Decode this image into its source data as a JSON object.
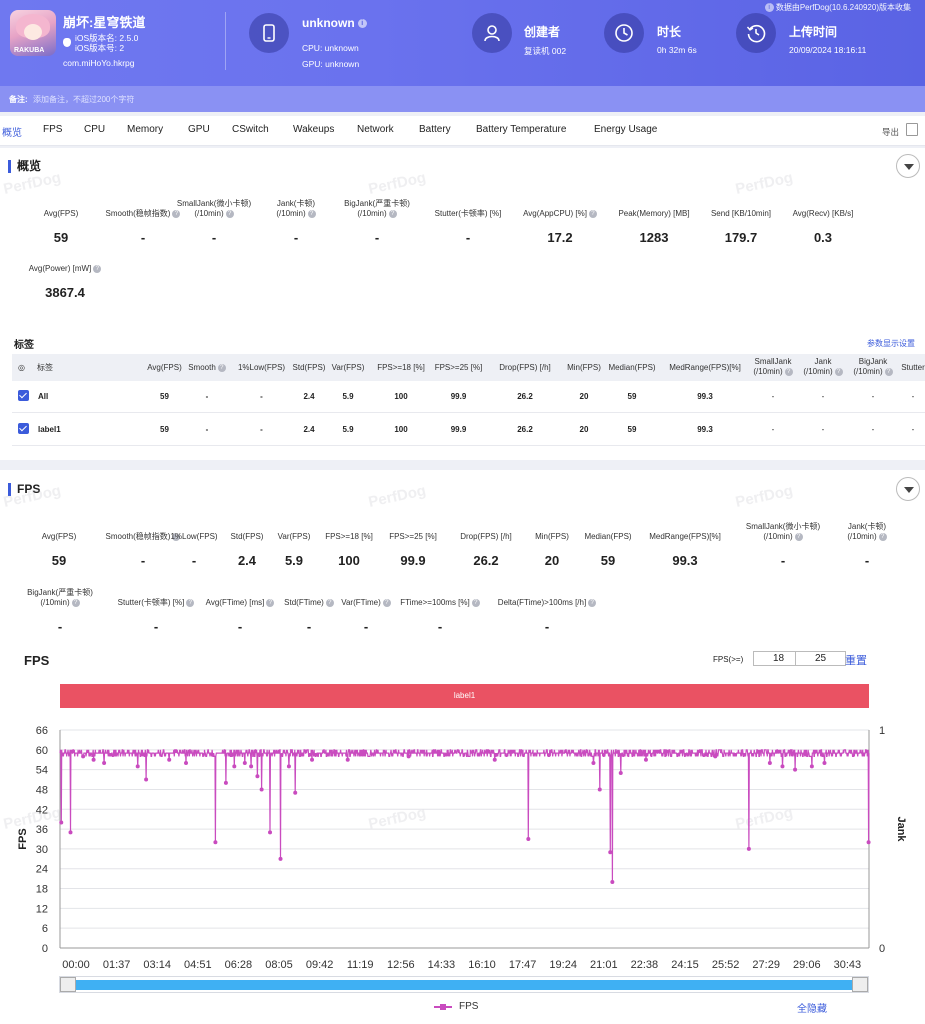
{
  "header": {
    "app_name": "崩坏:星穹铁道",
    "app_icon_tag": "RAKUBA",
    "ios_version_name": "iOS版本名: 2.5.0",
    "ios_version_code": "iOS版本号: 2",
    "package": "com.miHoYo.hkrpg",
    "device_name": "unknown",
    "cpu": "CPU: unknown",
    "gpu": "GPU: unknown",
    "creator_title": "创建者",
    "creator_value": "复读机 002",
    "duration_title": "时长",
    "duration_value": "0h 32m 6s",
    "upload_title": "上传时间",
    "upload_value": "20/09/2024 18:16:11",
    "collected_by": "数据由PerfDog(10.6.240920)版本收集"
  },
  "note": {
    "label": "备注:",
    "placeholder": "添加备注，不超过200个字符"
  },
  "tabs": [
    "概览",
    "FPS",
    "CPU",
    "Memory",
    "GPU",
    "CSwitch",
    "Wakeups",
    "Network",
    "Battery",
    "Battery Temperature",
    "Energy Usage"
  ],
  "export_label": "导出",
  "watermark": "PerfDog",
  "overview": {
    "title": "概览",
    "metrics": [
      {
        "label": "Avg(FPS)",
        "value": "59"
      },
      {
        "label": "Smooth(稳帧指数)",
        "value": "-"
      },
      {
        "label": "SmallJank(微小卡顿)\n(/10min)",
        "value": "-"
      },
      {
        "label": "Jank(卡顿)\n(/10min)",
        "value": "-"
      },
      {
        "label": "BigJank(严重卡顿)\n(/10min)",
        "value": "-"
      },
      {
        "label": "Stutter(卡顿率) [%]",
        "value": "-"
      },
      {
        "label": "Avg(AppCPU) [%]",
        "value": "17.2"
      },
      {
        "label": "Peak(Memory) [MB]",
        "value": "1283"
      },
      {
        "label": "Send [KB/10min]",
        "value": "179.7"
      },
      {
        "label": "Avg(Recv) [KB/s]",
        "value": "0.3"
      },
      {
        "label": "Avg(Power) [mW]",
        "value": "3867.4"
      }
    ]
  },
  "tags": {
    "title": "标签",
    "settings_link": "参数显示设置",
    "columns": [
      "标签",
      "Avg(FPS)",
      "Smooth",
      "1%Low(FPS)",
      "Std(FPS)",
      "Var(FPS)",
      "FPS>=18 [%]",
      "FPS>=25 [%]",
      "Drop(FPS) [/h]",
      "Min(FPS)",
      "Median(FPS)",
      "MedRange(FPS)[%]",
      "SmallJank\n(/10min)",
      "Jank\n(/10min)",
      "BigJank\n(/10min)",
      "Stutter"
    ],
    "rows": [
      [
        "All",
        "59",
        "-",
        "-",
        "2.4",
        "5.9",
        "100",
        "99.9",
        "26.2",
        "20",
        "59",
        "99.3",
        "-",
        "-",
        "-",
        "-"
      ],
      [
        "label1",
        "59",
        "-",
        "-",
        "2.4",
        "5.9",
        "100",
        "99.9",
        "26.2",
        "20",
        "59",
        "99.3",
        "-",
        "-",
        "-",
        "-"
      ]
    ]
  },
  "fps_section": {
    "title": "FPS",
    "metrics_row1": [
      {
        "label": "Avg(FPS)",
        "value": "59"
      },
      {
        "label": "Smooth(稳帧指数)",
        "value": "-"
      },
      {
        "label": "1%Low(FPS)",
        "value": "-"
      },
      {
        "label": "Std(FPS)",
        "value": "2.4"
      },
      {
        "label": "Var(FPS)",
        "value": "5.9"
      },
      {
        "label": "FPS>=18 [%]",
        "value": "100"
      },
      {
        "label": "FPS>=25 [%]",
        "value": "99.9"
      },
      {
        "label": "Drop(FPS) [/h]",
        "value": "26.2"
      },
      {
        "label": "Min(FPS)",
        "value": "20"
      },
      {
        "label": "Median(FPS)",
        "value": "59"
      },
      {
        "label": "MedRange(FPS)[%]",
        "value": "99.3"
      },
      {
        "label": "SmallJank(微小卡顿)\n(/10min)",
        "value": "-"
      },
      {
        "label": "Jank(卡顿)\n(/10min)",
        "value": "-"
      }
    ],
    "metrics_row2": [
      {
        "label": "BigJank(严重卡顿)\n(/10min)",
        "value": "-"
      },
      {
        "label": "Stutter(卡顿率) [%]",
        "value": "-"
      },
      {
        "label": "Avg(FTime) [ms]",
        "value": "-"
      },
      {
        "label": "Std(FTime)",
        "value": "-"
      },
      {
        "label": "Var(FTime)",
        "value": "-"
      },
      {
        "label": "FTime>=100ms [%]",
        "value": "-"
      },
      {
        "label": "Delta(FTime)>100ms [/h]",
        "value": "-"
      }
    ]
  },
  "chart_controls": {
    "title": "FPS",
    "threshold_label": "FPS(>=)",
    "threshold_1": "18",
    "threshold_2": "25",
    "reset_label": "重置",
    "label_band": "label1",
    "legend": "FPS",
    "hide_all": "全隐藏"
  },
  "colors": {
    "accent": "#3b5bdb",
    "series": "#c94bbf",
    "label_band": "#ea5263",
    "header": "#6a72ee"
  },
  "chart_data": {
    "type": "line",
    "title": "FPS",
    "ylabel": "FPS",
    "y2label": "Jank",
    "ylim": [
      0,
      66
    ],
    "y2lim": [
      0,
      1
    ],
    "yticks": [
      0,
      6,
      12,
      18,
      24,
      30,
      36,
      42,
      48,
      54,
      60,
      66
    ],
    "y2ticks": [
      0,
      1
    ],
    "xlim_seconds": [
      0,
      1926
    ],
    "xticks": [
      "00:00",
      "01:37",
      "03:14",
      "04:51",
      "06:28",
      "08:05",
      "09:42",
      "11:19",
      "12:56",
      "14:33",
      "16:10",
      "17:47",
      "19:24",
      "21:01",
      "22:38",
      "24:15",
      "25:52",
      "27:29",
      "29:06",
      "30:43"
    ],
    "baseline_fps": 59,
    "dips": [
      [
        3,
        38
      ],
      [
        25,
        35
      ],
      [
        55,
        58
      ],
      [
        80,
        57
      ],
      [
        105,
        56
      ],
      [
        185,
        55
      ],
      [
        205,
        51
      ],
      [
        260,
        57
      ],
      [
        300,
        56
      ],
      [
        370,
        32
      ],
      [
        395,
        50
      ],
      [
        415,
        55
      ],
      [
        440,
        56
      ],
      [
        455,
        55
      ],
      [
        470,
        52
      ],
      [
        480,
        48
      ],
      [
        500,
        35
      ],
      [
        525,
        27
      ],
      [
        545,
        55
      ],
      [
        560,
        47
      ],
      [
        600,
        57
      ],
      [
        685,
        57
      ],
      [
        830,
        58
      ],
      [
        1035,
        57
      ],
      [
        1115,
        33
      ],
      [
        1270,
        56
      ],
      [
        1285,
        48
      ],
      [
        1310,
        29
      ],
      [
        1315,
        20
      ],
      [
        1335,
        53
      ],
      [
        1395,
        57
      ],
      [
        1560,
        58
      ],
      [
        1640,
        30
      ],
      [
        1690,
        56
      ],
      [
        1720,
        55
      ],
      [
        1750,
        54
      ],
      [
        1790,
        55
      ],
      [
        1820,
        56
      ],
      [
        1925,
        32
      ]
    ],
    "grid": true,
    "legend_position": "bottom-center"
  }
}
